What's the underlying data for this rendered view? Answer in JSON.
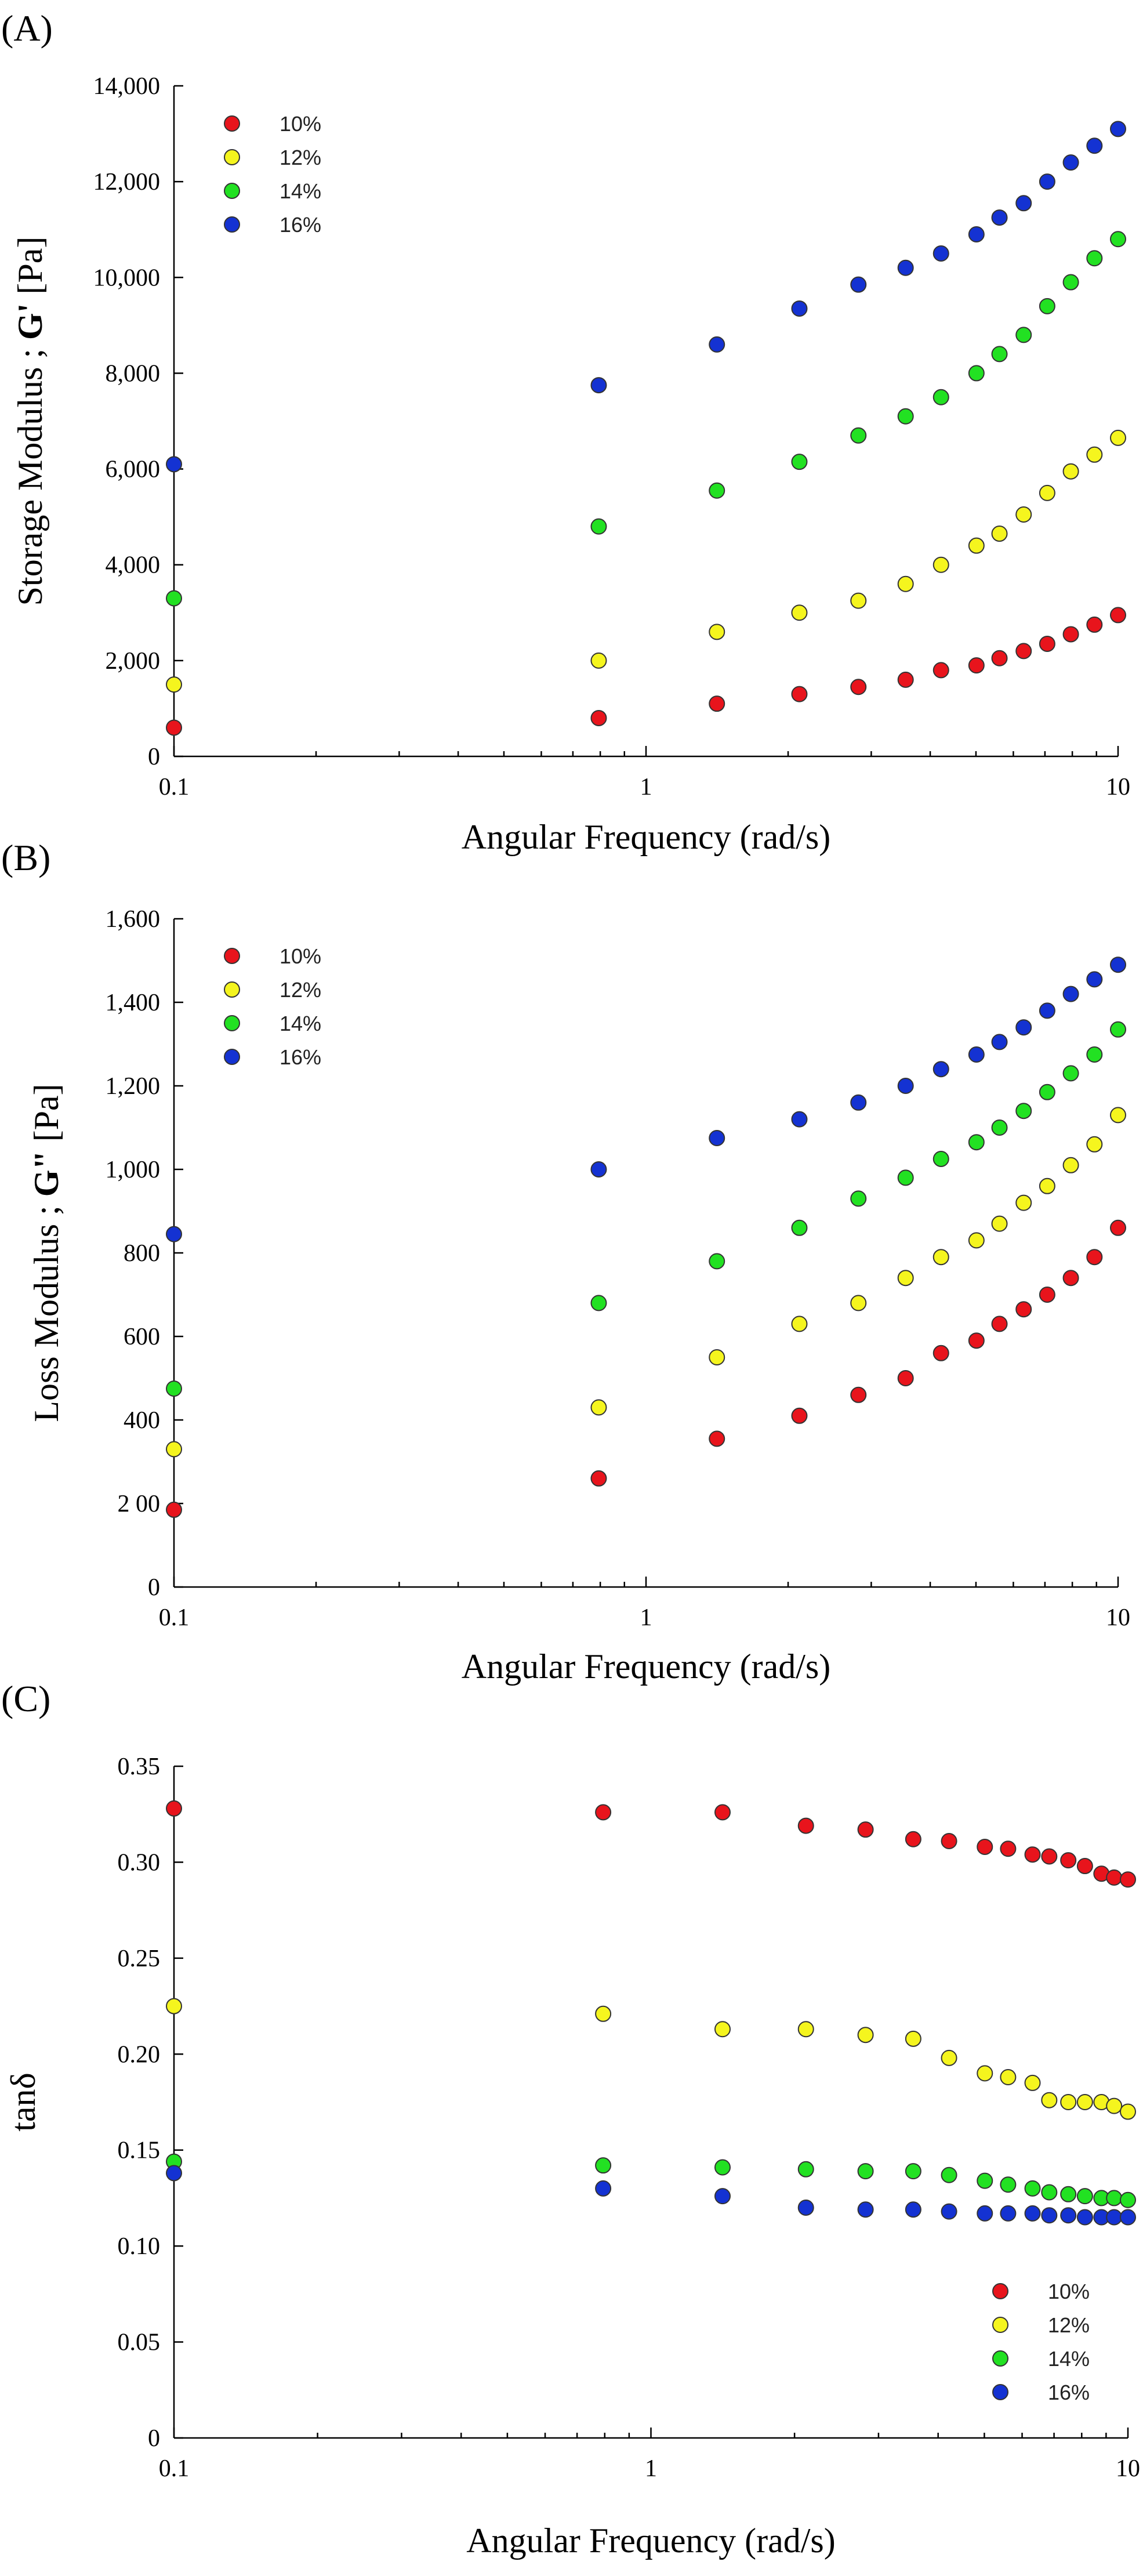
{
  "chart_data": [
    {
      "panel": "(A)",
      "type": "scatter",
      "xlabel": "Angular Frequency (rad/s)",
      "ylabel_parts": [
        "Storage Modulus  ; ",
        "G'",
        " [Pa]"
      ],
      "xscale": "log",
      "xlim": [
        0.1,
        10
      ],
      "ylim": [
        0,
        14000
      ],
      "xticks": [
        0.1,
        1,
        10
      ],
      "xtick_labels": [
        "0.1",
        "1",
        "10"
      ],
      "yticks": [
        0,
        2000,
        4000,
        6000,
        8000,
        10000,
        12000,
        14000
      ],
      "ytick_labels": [
        "0",
        "2,000",
        "4,000",
        "6,000",
        "8,000",
        "10,000",
        "12,000",
        "14,000"
      ],
      "legend_position": "top-left",
      "x": [
        0.1,
        0.794,
        1.413,
        2.113,
        2.818,
        3.548,
        4.217,
        5.012,
        5.608,
        6.31,
        7.079,
        7.943,
        8.913,
        10
      ],
      "series": [
        {
          "name": "10%",
          "color": "#e8141c",
          "values": [
            600,
            800,
            1100,
            1300,
            1450,
            1600,
            1800,
            1900,
            2050,
            2200,
            2350,
            2550,
            2750,
            2950
          ]
        },
        {
          "name": "12%",
          "color": "#f5f51e",
          "values": [
            1500,
            2000,
            2600,
            3000,
            3250,
            3600,
            4000,
            4400,
            4650,
            5050,
            5500,
            5950,
            6300,
            6650
          ]
        },
        {
          "name": "14%",
          "color": "#22e122",
          "values": [
            3300,
            4800,
            5550,
            6150,
            6700,
            7100,
            7500,
            8000,
            8400,
            8800,
            9400,
            9900,
            10400,
            10800
          ]
        },
        {
          "name": "16%",
          "color": "#1432d2",
          "values": [
            6100,
            7750,
            8600,
            9350,
            9850,
            10200,
            10500,
            10900,
            11250,
            11550,
            12000,
            12400,
            12750,
            13100
          ]
        }
      ]
    },
    {
      "panel": "(B)",
      "type": "scatter",
      "xlabel": "Angular Frequency (rad/s)",
      "ylabel_parts": [
        "Loss Modulus ; ",
        "G\"",
        " [Pa]"
      ],
      "xscale": "log",
      "xlim": [
        0.1,
        10
      ],
      "ylim": [
        0,
        1600
      ],
      "xticks": [
        0.1,
        1,
        10
      ],
      "xtick_labels": [
        "0.1",
        "1",
        "10"
      ],
      "yticks": [
        0,
        200,
        400,
        600,
        800,
        1000,
        1200,
        1400,
        1600
      ],
      "ytick_labels": [
        "0",
        "2 00",
        "400",
        "600",
        "800",
        "1,000",
        "1,200",
        "1,400",
        "1,600"
      ],
      "legend_position": "top-left",
      "x": [
        0.1,
        0.794,
        1.413,
        2.113,
        2.818,
        3.548,
        4.217,
        5.012,
        5.608,
        6.31,
        7.079,
        7.943,
        8.913,
        10
      ],
      "series": [
        {
          "name": "10%",
          "color": "#e8141c",
          "values": [
            185,
            260,
            355,
            410,
            460,
            500,
            560,
            590,
            630,
            665,
            700,
            740,
            790,
            860
          ]
        },
        {
          "name": "12%",
          "color": "#f5f51e",
          "values": [
            330,
            430,
            550,
            630,
            680,
            740,
            790,
            830,
            870,
            920,
            960,
            1010,
            1060,
            1130
          ]
        },
        {
          "name": "14%",
          "color": "#22e122",
          "values": [
            475,
            680,
            780,
            860,
            930,
            980,
            1025,
            1065,
            1100,
            1140,
            1185,
            1230,
            1275,
            1335
          ]
        },
        {
          "name": "16%",
          "color": "#1432d2",
          "values": [
            845,
            1000,
            1075,
            1120,
            1160,
            1200,
            1240,
            1275,
            1305,
            1340,
            1380,
            1420,
            1455,
            1490
          ]
        }
      ]
    },
    {
      "panel": "(C)",
      "type": "scatter",
      "xlabel": "Angular Frequency (rad/s)",
      "ylabel_parts": [
        "tanδ"
      ],
      "xscale": "log",
      "xlim": [
        0.1,
        10
      ],
      "ylim": [
        0,
        0.35
      ],
      "xticks": [
        0.1,
        1,
        10
      ],
      "xtick_labels": [
        "0.1",
        "1",
        "10"
      ],
      "yticks": [
        0,
        0.05,
        0.1,
        0.15,
        0.2,
        0.25,
        0.3,
        0.35
      ],
      "ytick_labels": [
        "0",
        "0.05",
        "0.10",
        "0.15",
        "0.20",
        "0.25",
        "0.30",
        "0.35"
      ],
      "legend_position": "bottom-right",
      "x": [
        0.1,
        0.794,
        1.413,
        2.113,
        2.818,
        3.548,
        4.217,
        5.012,
        5.608,
        6.31,
        6.84,
        7.499,
        8.126,
        8.8,
        9.355,
        10
      ],
      "series": [
        {
          "name": "10%",
          "color": "#e8141c",
          "values": [
            0.328,
            0.326,
            0.326,
            0.319,
            0.317,
            0.312,
            0.311,
            0.308,
            0.307,
            0.304,
            0.303,
            0.301,
            0.298,
            0.294,
            0.292,
            0.291
          ]
        },
        {
          "name": "12%",
          "color": "#f5f51e",
          "values": [
            0.225,
            0.221,
            0.213,
            0.213,
            0.21,
            0.208,
            0.198,
            0.19,
            0.188,
            0.185,
            0.176,
            0.175,
            0.175,
            0.175,
            0.173,
            0.17
          ]
        },
        {
          "name": "14%",
          "color": "#22e122",
          "values": [
            0.144,
            0.142,
            0.141,
            0.14,
            0.139,
            0.139,
            0.137,
            0.134,
            0.132,
            0.13,
            0.128,
            0.127,
            0.126,
            0.125,
            0.125,
            0.124
          ]
        },
        {
          "name": "16%",
          "color": "#1432d2",
          "values": [
            0.138,
            0.13,
            0.126,
            0.12,
            0.119,
            0.119,
            0.118,
            0.117,
            0.117,
            0.117,
            0.116,
            0.116,
            0.115,
            0.115,
            0.115,
            0.115
          ]
        }
      ]
    }
  ]
}
